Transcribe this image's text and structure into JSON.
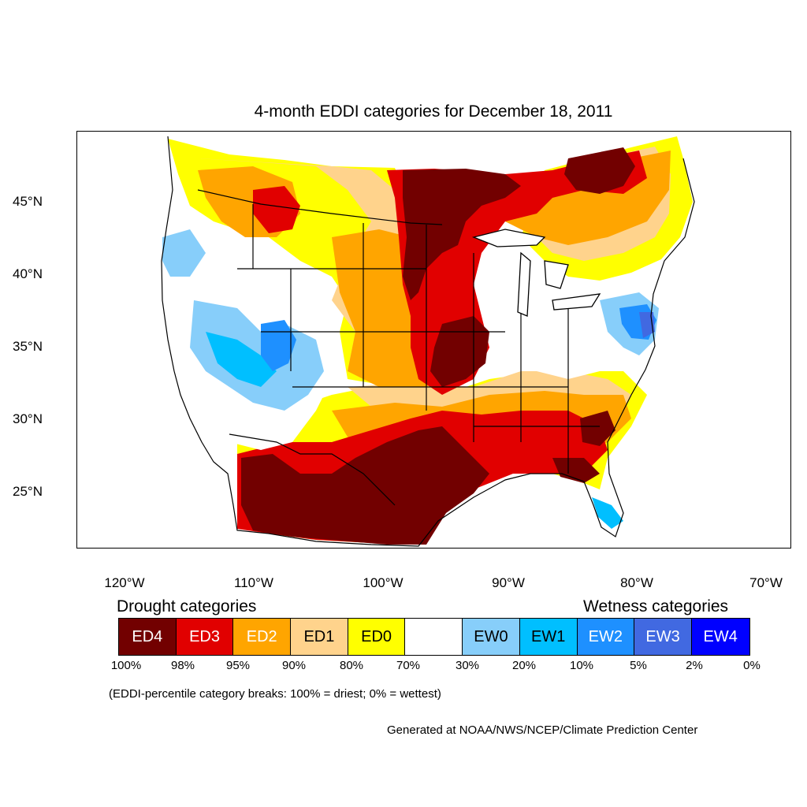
{
  "title": "4-month EDDI categories for December 18, 2011",
  "lat_labels": [
    "45°N",
    "40°N",
    "35°N",
    "30°N",
    "25°N"
  ],
  "lon_labels": [
    "120°W",
    "110°W",
    "100°W",
    "90°W",
    "80°W",
    "70°W"
  ],
  "drought_header": "Drought categories",
  "wetness_header": "Wetness categories",
  "legend": [
    {
      "label": "ED4",
      "color": "#720000",
      "text_color": "#ffffff"
    },
    {
      "label": "ED3",
      "color": "#e10000",
      "text_color": "#ffffff"
    },
    {
      "label": "ED2",
      "color": "#ffa500",
      "text_color": "#ffffff"
    },
    {
      "label": "ED1",
      "color": "#ffd38c",
      "text_color": "#000000"
    },
    {
      "label": "ED0",
      "color": "#ffff00",
      "text_color": "#000000"
    },
    {
      "label": "",
      "color": "#ffffff",
      "text_color": "#000000"
    },
    {
      "label": "EW0",
      "color": "#87cefa",
      "text_color": "#000000"
    },
    {
      "label": "EW1",
      "color": "#00bfff",
      "text_color": "#000000"
    },
    {
      "label": "EW2",
      "color": "#1e90ff",
      "text_color": "#ffffff"
    },
    {
      "label": "EW3",
      "color": "#4169e1",
      "text_color": "#ffffff"
    },
    {
      "label": "EW4",
      "color": "#0000ff",
      "text_color": "#ffffff"
    }
  ],
  "percentiles": [
    "100%",
    "98%",
    "95%",
    "90%",
    "80%",
    "70%",
    "30%",
    "20%",
    "10%",
    "5%",
    "2%",
    "0%"
  ],
  "note": "(EDDI-percentile category breaks: 100% = driest; 0% = wettest)",
  "credit": "Generated at NOAA/NWS/NCEP/Climate Prediction Center"
}
